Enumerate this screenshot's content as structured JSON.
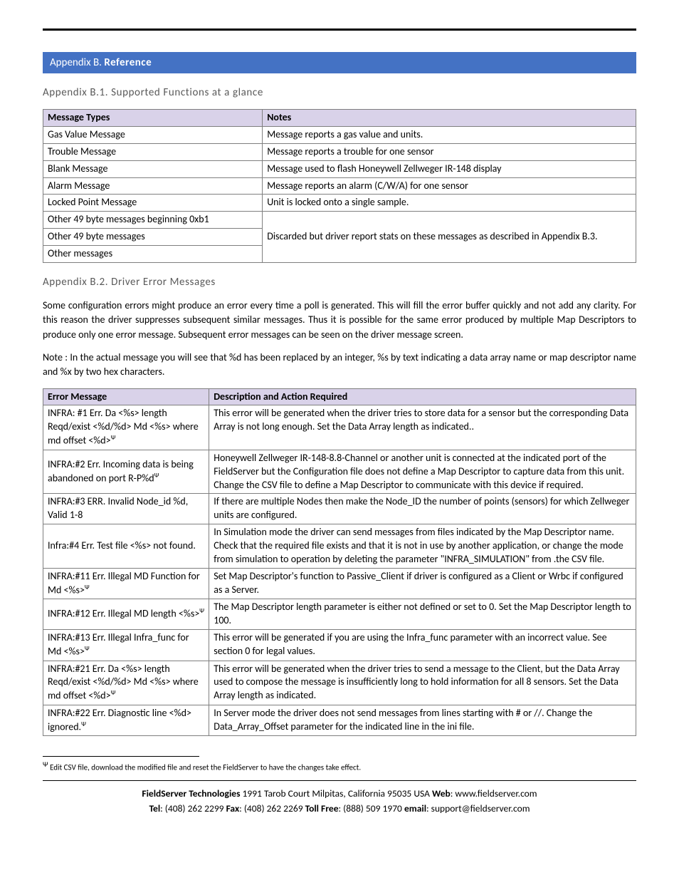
{
  "banner": {
    "prefix": "Appendix B. ",
    "title": "Reference"
  },
  "section1": {
    "heading": "Appendix B.1. Supported Functions at a glance",
    "headers": [
      "Message Types",
      "Notes"
    ],
    "rows": [
      {
        "type": "Gas Value Message",
        "note": "Message reports a gas value and units."
      },
      {
        "type": "Trouble Message",
        "note": "Message reports a trouble for one sensor"
      },
      {
        "type": "Blank Message",
        "note": "Message used to flash Honeywell Zellweger IR-148 display"
      },
      {
        "type": "Alarm Message",
        "note": "Message reports an alarm (C/W/A) for one sensor"
      },
      {
        "type": "Locked Point Message",
        "note": "Unit is locked onto a single sample."
      },
      {
        "type": "Other 49 byte messages beginning 0xb1",
        "note": null
      },
      {
        "type": "Other 49 byte messages",
        "note": null
      },
      {
        "type": "Other messages",
        "note": null
      }
    ],
    "merged_note": "Discarded but driver report stats on these messages as described in Appendix B.3."
  },
  "section2": {
    "heading": "Appendix B.2. Driver Error Messages",
    "para1": "Some configuration errors might produce an error every time a poll is generated.  This will fill the error buffer quickly and not add any clarity.  For this reason the driver suppresses subsequent similar messages.  Thus it is possible for the same error produced by multiple Map Descriptors to produce only one error message.  Subsequent error messages can be seen on the driver message screen.",
    "para2": "Note : In the actual message you will see that %d has been replaced by an integer, %s by text indicating a data array name or map descriptor name and %x by two hex characters.",
    "headers": [
      "Error Message",
      "Description and Action Required"
    ],
    "rows": [
      {
        "msg": "INFRA: #1 Err. Da <%s> length Reqd/exist <%d/%d> Md <%s> where md offset <%d>",
        "psi": true,
        "desc": "This error will be generated when the driver tries to store data for a sensor but the corresponding Data Array is not long enough. Set the Data Array length as indicated.."
      },
      {
        "msg": "INFRA:#2 Err. Incoming data is being abandoned on port R-P%d",
        "psi": true,
        "desc": "Honeywell Zellweger IR-148-8.8-Channel or another unit is connected at the indicated port of the FieldServer but the Configuration file does not define a Map Descriptor to capture data from this unit.  Change the CSV file to define a Map Descriptor to communicate with this device if required."
      },
      {
        "msg": "INFRA:#3 ERR. Invalid Node_id %d, Valid 1-8",
        "psi": false,
        "desc": "If there are multiple Nodes then make the Node_ID the number of points (sensors) for which Zellweger units are configured."
      },
      {
        "msg": "Infra:#4 Err. Test file <%s> not found.",
        "psi": false,
        "desc": "In Simulation mode the driver can send messages from files indicated by the Map Descriptor name.  Check that the required file exists and that it is not in use by another application, or change the mode from simulation to operation by deleting the parameter \"INFRA_SIMULATION\" from .the CSV file."
      },
      {
        "msg": "INFRA:#11 Err. Illegal MD Function for Md <%s>",
        "psi": true,
        "desc": "Set Map Descriptor's function to Passive_Client if driver is configured as a Client or Wrbc if configured as a Server."
      },
      {
        "msg": "INFRA:#12 Err. Illegal MD length <%s>",
        "psi": true,
        "desc": "The Map Descriptor length parameter is either not defined or set to 0.  Set the Map Descriptor length to 100."
      },
      {
        "msg": "INFRA:#13 Err. Illegal Infra_func for Md <%s>",
        "psi": true,
        "desc": "This error will be generated if you are using the Infra_func parameter with an incorrect value.  See section 0 for legal values."
      },
      {
        "msg": "INFRA:#21 Err. Da <%s> length Reqd/exist <%d/%d> Md <%s> where md offset <%d>",
        "psi": true,
        "desc": "This error will be generated when the driver tries to send a message to the Client, but the Data Array used to compose the message is insufficiently long to hold information for all 8 sensors. Set the Data Array length as indicated."
      },
      {
        "msg": "INFRA:#22 Err. Diagnostic line <%d> ignored.",
        "psi": true,
        "desc": "In Server mode the driver does not send messages from lines starting with # or //.  Change the Data_Array_Offset parameter for the indicated line in the ini file."
      }
    ]
  },
  "footnote": {
    "symbol": "Ψ",
    "text": " Edit CSV file, download the modified file and reset the FieldServer to have the changes take effect."
  },
  "footer": {
    "line1_a": "FieldServer Technologies",
    "line1_b": " 1991 Tarob Court Milpitas, California 95035 USA   ",
    "line1_c": "Web",
    "line1_d": ": www.fieldserver.com",
    "line2_a": "Tel",
    "line2_b": ": (408) 262 2299   ",
    "line2_c": "Fax",
    "line2_d": ": (408) 262 2269   ",
    "line2_e": "Toll Free",
    "line2_f": ": (888) 509 1970   ",
    "line2_g": "email",
    "line2_h": ": support@fieldserver.com"
  },
  "colors": {
    "banner_bg": "#4472c4",
    "table_header_bg": "#d9d2e9",
    "border": "#7f7f7f"
  }
}
